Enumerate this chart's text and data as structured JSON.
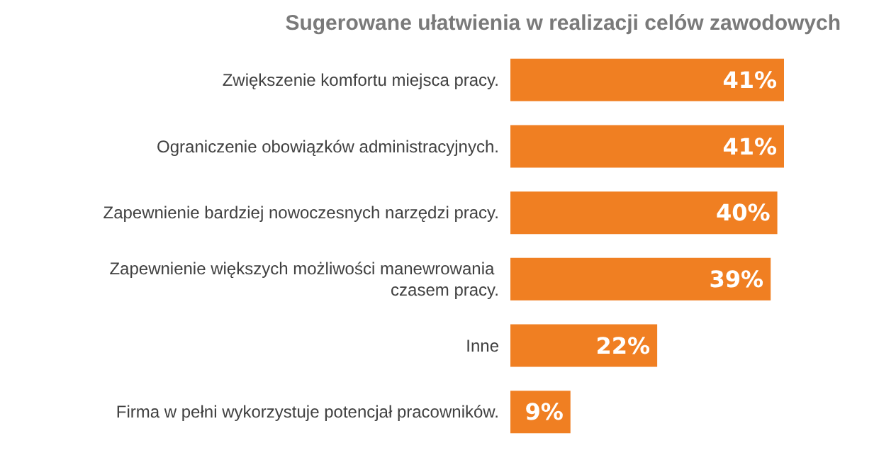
{
  "chart_data": {
    "type": "bar",
    "orientation": "horizontal",
    "title": "Sugerowane ułatwienia w realizacji celów zawodowych",
    "categories": [
      "Zwiększenie komfortu miejsca pracy.",
      "Ograniczenie obowiązków administracyjnych.",
      "Zapewnienie bardziej nowoczesnych narzędzi pracy.",
      "Zapewnienie większych możliwości manewrowania czasem pracy.",
      "Inne",
      "Firma w pełni wykorzystuje potencjał pracowników."
    ],
    "values": [
      41,
      41,
      40,
      39,
      22,
      9
    ],
    "value_labels": [
      "41%",
      "41%",
      "40%",
      "39%",
      "22%",
      "9%"
    ],
    "color": "#f07f22"
  }
}
